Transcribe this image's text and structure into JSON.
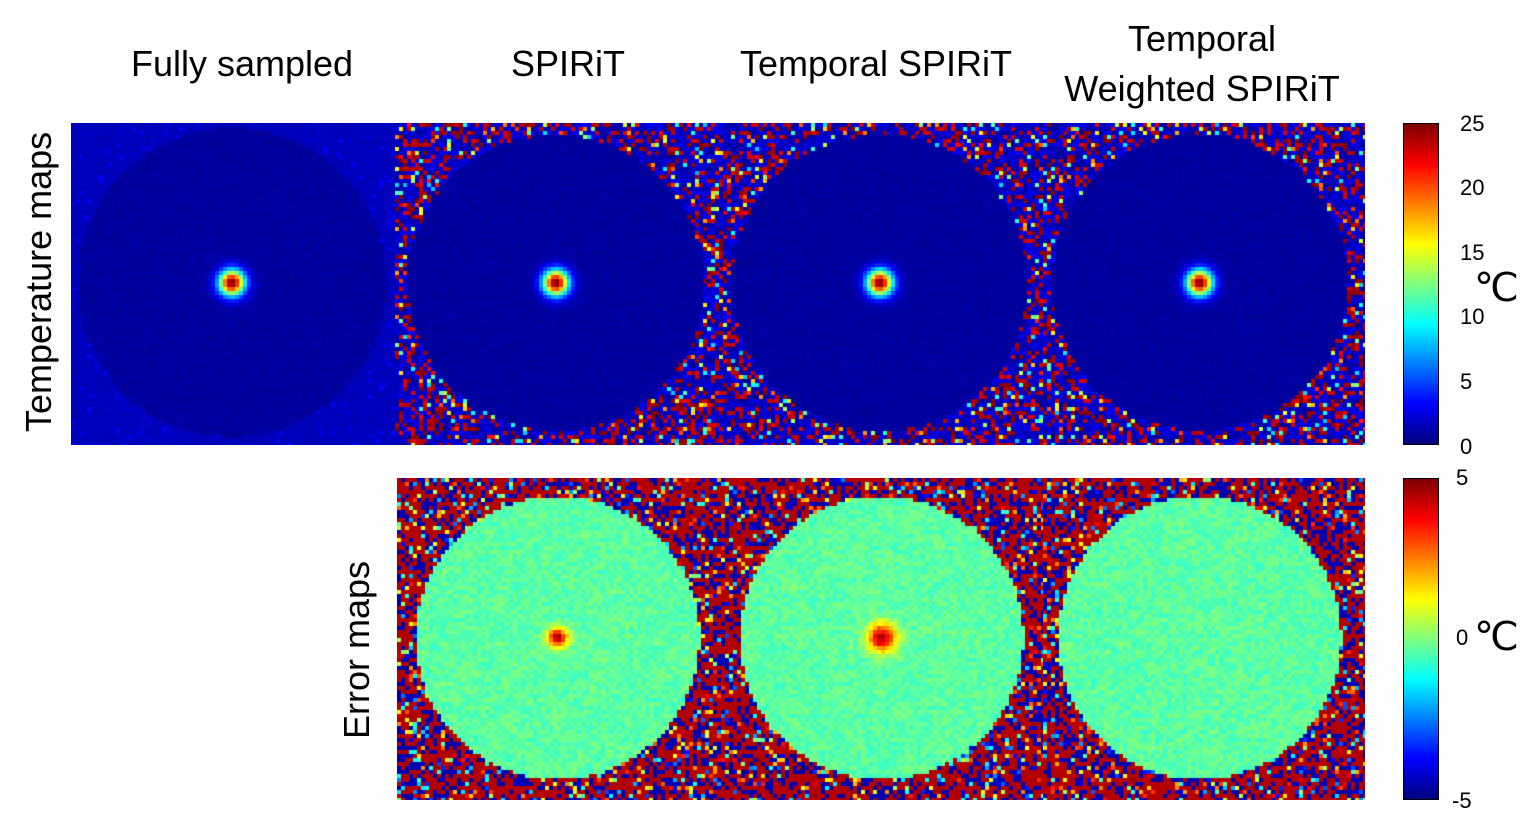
{
  "columns": [
    "Fully sampled",
    "SPIRiT",
    "Temporal SPIRiT",
    "Temporal\nWeighted SPIRiT"
  ],
  "column_lines": {
    "c0": "Fully sampled",
    "c1": "SPIRiT",
    "c2": "Temporal SPIRiT",
    "c3_line1": "Temporal",
    "c3_line2": "Weighted SPIRiT"
  },
  "rows": {
    "temperature": "Temperature maps",
    "error": "Error maps"
  },
  "temperature_colorbar": {
    "ticks": [
      "25",
      "20",
      "15",
      "10",
      "5",
      "0"
    ],
    "unit": "℃",
    "range": [
      0,
      25
    ]
  },
  "error_colorbar": {
    "ticks": [
      "5",
      "0",
      "-5"
    ],
    "unit": "℃",
    "range": [
      -5,
      5
    ]
  },
  "colors": {
    "jet_low": "#00008f",
    "jet_mid": "#7fff7f",
    "jet_high": "#800000"
  }
}
